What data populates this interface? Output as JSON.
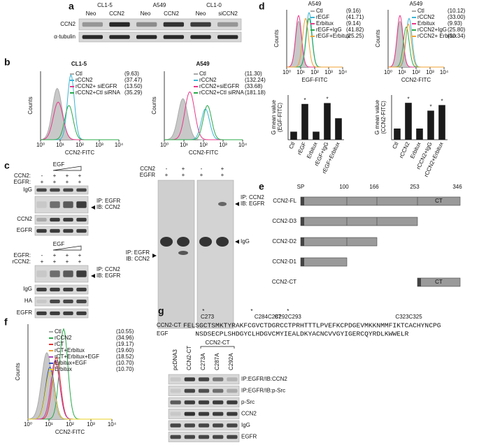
{
  "panels": {
    "a": {
      "label": "a",
      "groups": [
        "CL1-5",
        "A549",
        "CL1-0"
      ],
      "lanes": [
        "Neo",
        "CCN2",
        "Neo",
        "CCN2",
        "Neo",
        "siCCN2"
      ],
      "rows": [
        "CCN2",
        "α-tubulin"
      ]
    },
    "b": {
      "label": "b",
      "y_label": "Counts",
      "x_label": "CCN2-FITC",
      "x_ticks": [
        "10⁰",
        "10¹",
        "10²",
        "10³",
        "10⁴"
      ],
      "plots": [
        {
          "title": "CL1-5",
          "legend": [
            "Ctl",
            "rCCN2",
            "rCCN2+ siEGFR",
            "rCCN2+Ctl siRNA"
          ],
          "colors": [
            "#aaaaaa",
            "#3ab5d6",
            "#e8388a",
            "#2aa84a"
          ],
          "values": [
            "(9.63)",
            "(37.47)",
            "(13.50)",
            "(35.29)"
          ]
        },
        {
          "title": "A549",
          "legend": [
            "Ctl",
            "rCCN2",
            "rCCN2+siEGFR",
            "rCCN2+Ctl siRNA"
          ],
          "colors": [
            "#aaaaaa",
            "#3ab5d6",
            "#e8388a",
            "#2aa84a"
          ],
          "values": [
            "(11.30)",
            "(132.24)",
            "(33.68)",
            "(181.18)"
          ]
        }
      ]
    },
    "c": {
      "label": "c",
      "top": {
        "treatment": "EGF",
        "conditions": [
          {
            "name": "CCN2:",
            "signs": [
              "-",
              "+",
              "+",
              "+"
            ]
          },
          {
            "name": "EGFR:",
            "signs": [
              "+",
              "+",
              "+",
              "+"
            ]
          }
        ],
        "ip": "IP: EGFR",
        "ib": "IB: CCN2",
        "rows": [
          "IgG",
          "CCN2",
          "EGFR"
        ]
      },
      "bottom": {
        "treatment": "EGF",
        "conditions": [
          {
            "name": "EGFR:",
            "signs": [
              "-",
              "+",
              "+",
              "+"
            ]
          },
          {
            "name": "rCCN2:",
            "signs": [
              "+",
              "+",
              "+",
              "+"
            ]
          }
        ],
        "ip": "IP: CCN2",
        "ib": "IB: EGFR",
        "rows": [
          "IgG",
          "HA",
          "EGFR"
        ]
      },
      "gel": {
        "conditions": [
          {
            "name": "CCN2",
            "signs": [
              "-",
              "+",
              "-",
              "+"
            ]
          },
          {
            "name": "EGFR",
            "signs": [
              "+",
              "+",
              "+",
              "+"
            ]
          }
        ],
        "left_ip": "IP: EGFR",
        "left_ib": "IB: CCN2",
        "right_ip": "IP: CCN2",
        "right_ib": "IB: EGFR",
        "band": "IgG"
      }
    },
    "d": {
      "label": "d",
      "plots": [
        {
          "title": "A549",
          "x_label": "EGF-FITC",
          "legend": [
            "Ctl",
            "rEGF",
            "Erbitux",
            "rEGF+IgG",
            "rEGF+Erbitux"
          ],
          "colors": [
            "#aaaaaa",
            "#3ab5d6",
            "#e8388a",
            "#2aa84a",
            "#f0a030"
          ],
          "values": [
            "(9.16)",
            "(41.71)",
            "(9.14)",
            "(41.82)",
            "(25.25)"
          ]
        },
        {
          "title": "A549",
          "x_label": "CCN2-FITC",
          "legend": [
            "Ctl",
            "rCCN2",
            "Erbitux",
            "rCCN2+IgG",
            "rCCN2+ Erbitux"
          ],
          "colors": [
            "#aaaaaa",
            "#3ab5d6",
            "#e8388a",
            "#2aa84a",
            "#f0a030"
          ],
          "values": [
            "(10.12)",
            "(33.00)",
            "(9.93)",
            "(25.80)",
            "(30.34)"
          ]
        }
      ],
      "bars": [
        {
          "y_label": [
            "G mean value",
            "(EGF-FITC)"
          ],
          "categories": [
            "Ctl",
            "rEGF",
            "Erbitux",
            "rEGF+IgG",
            "rEGF+Erbitux"
          ],
          "values": [
            9,
            40,
            9,
            41,
            24
          ],
          "ylim": [
            0,
            50
          ],
          "starred": [
            "rEGF",
            "rEGF+IgG"
          ],
          "star": "*",
          "color": "#1a1a1a"
        },
        {
          "y_label": [
            "G mean value",
            "(CCN2-FITC)"
          ],
          "categories": [
            "Ctl",
            "rCCN2",
            "Erbitux",
            "rCCN2+IgG",
            "rCCN2+Erbitux"
          ],
          "values": [
            10,
            33,
            10,
            26,
            31
          ],
          "ylim": [
            0,
            40
          ],
          "starred": [
            "rCCN2",
            "rCCN2+IgG",
            "rCCN2+Erbitux"
          ],
          "star": "*",
          "color": "#1a1a1a"
        }
      ]
    },
    "e": {
      "label": "e",
      "positions": [
        "SP",
        "100",
        "166",
        "253",
        "346"
      ],
      "constructs": [
        "CCN2-FL",
        "CCN2-D3",
        "CCN2-D2",
        "CCN2-D1",
        "CCN2-CT"
      ],
      "domain": "CT"
    },
    "f": {
      "label": "f",
      "y_label": "Counts",
      "x_label": "CCN2-FITC",
      "legend": [
        "Ctl",
        "rCCN2",
        "rCT",
        "rCT+Erbitux",
        "rCT+Erbitux+EGF",
        "Erbitux+EGF",
        "Erbitux"
      ],
      "colors": [
        "#aaaaaa",
        "#2aa84a",
        "#e83030",
        "#f0a030",
        "#b040c0",
        "#3050c0",
        "#e8d020"
      ],
      "values": [
        "(10.55)",
        "(34.96)",
        "(19.17)",
        "(19.60)",
        "(18.52)",
        "(10.70)",
        "(10.70)"
      ]
    },
    "g": {
      "label": "g",
      "sites": [
        "C273",
        "C284C287",
        "C292C293",
        "C323C325"
      ],
      "star": "*",
      "sequences": [
        {
          "name": "CCN2-CT",
          "sequence": "FELSGCTSMKTYRAKFCGVCTDGRCCTPRHTTTLPVEFKCPDGEVMKKNMMFIKTCACHYNCPG"
        },
        {
          "name": "EGF",
          "sequence": "NSDSECPLSHDGYCLHDGVCMYIEALDKYACNCVVGYIGERCQYRDLKWWELR"
        }
      ],
      "lanes": [
        "pcDNA3",
        "CCN2-CT",
        "C273A",
        "C287A",
        "C292A"
      ],
      "group": "CCN2-CT",
      "rows": [
        "IP:EGFR/IB:CCN2",
        "IP:EGFR/IB:p-Src",
        "p-Src",
        "CCN2",
        "IgG",
        "EGFR"
      ]
    }
  }
}
